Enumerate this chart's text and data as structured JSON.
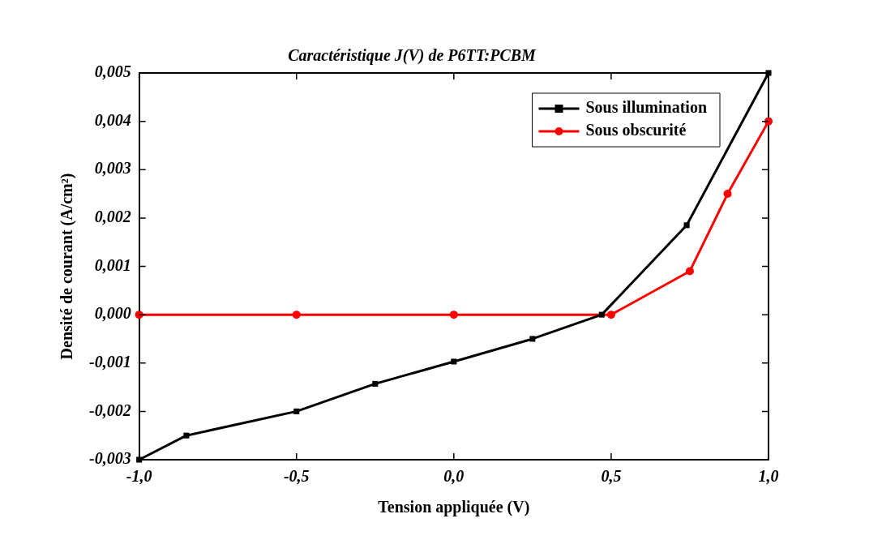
{
  "chart_data": {
    "type": "line",
    "title": "Caractéristique J(V) de P6TT:PCBM",
    "xlabel": "Tension appliquée (V)",
    "ylabel": "Densité de courant (A/cm²)",
    "xlim": [
      -1,
      1
    ],
    "xticks": [
      {
        "value": -1,
        "label": "-1,0"
      },
      {
        "value": -0.5,
        "label": "-0,5"
      },
      {
        "value": 0,
        "label": "0,0"
      },
      {
        "value": 0.5,
        "label": "0,5"
      },
      {
        "value": 1,
        "label": "1,0"
      }
    ],
    "ylim": [
      -0.003,
      0.005
    ],
    "yticks": [
      {
        "value": -0.003,
        "label": "-0,003"
      },
      {
        "value": -0.002,
        "label": "-0,002"
      },
      {
        "value": -0.001,
        "label": "-0,001"
      },
      {
        "value": 0,
        "label": "0,000"
      },
      {
        "value": 0.001,
        "label": "0,001"
      },
      {
        "value": 0.002,
        "label": "0,002"
      },
      {
        "value": 0.003,
        "label": "0,003"
      },
      {
        "value": 0.004,
        "label": "0,004"
      },
      {
        "value": 0.005,
        "label": "0,005"
      }
    ],
    "grid": false,
    "legend": "top right",
    "line_style": "solid",
    "series": [
      {
        "name": "Sous illumination",
        "color": "#000000",
        "marker": "square",
        "x": [
          -1,
          -0.85,
          -0.5,
          -0.25,
          0,
          0.25,
          0.47,
          0.74,
          1
        ],
        "values": [
          -0.003,
          -0.0025,
          -0.002,
          -0.00143,
          -0.00097,
          -0.0005,
          0,
          0.00185,
          0.005
        ]
      },
      {
        "name": "Sous obscurité",
        "color": "#ff0000",
        "marker": "circle",
        "x": [
          -1,
          -0.5,
          0,
          0.5,
          0.75,
          0.87,
          1
        ],
        "values": [
          0,
          0,
          0,
          0,
          0.0009,
          0.0025,
          0.004
        ]
      }
    ]
  }
}
